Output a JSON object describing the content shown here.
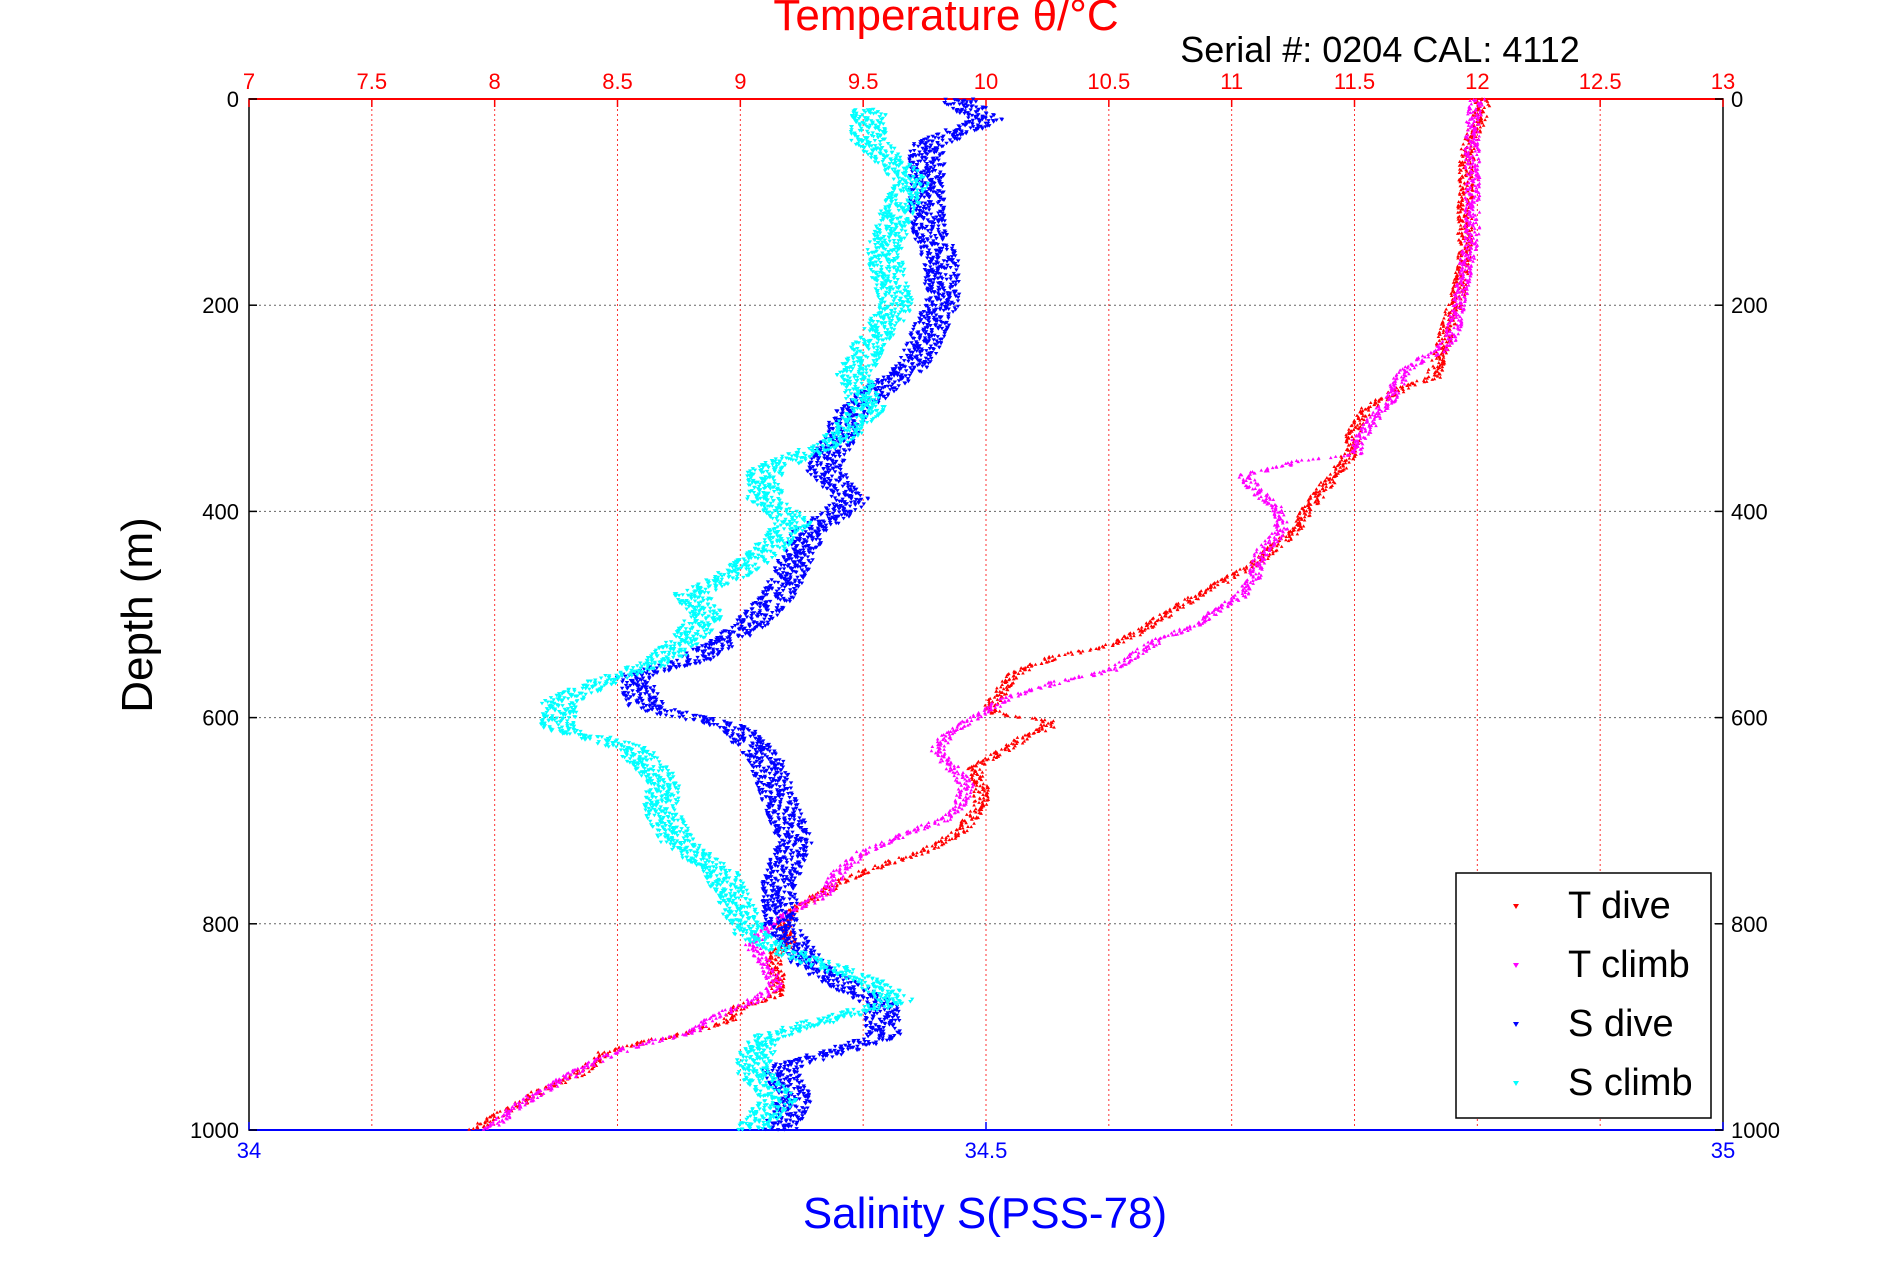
{
  "chart_data": {
    "type": "scatter",
    "title": "Temperature θ/°C",
    "annotation": "Serial #: 0204  CAL: 4112",
    "ylabel": "Depth (m)",
    "x2label": "Salinity S(PSS-78)",
    "xlim_temperature": [
      7,
      13
    ],
    "xlim_salinity": [
      34,
      35
    ],
    "ylim_depth": [
      0,
      1000
    ],
    "y_reversed": true,
    "temperature_ticks": [
      "7",
      "7.5",
      "8",
      "8.5",
      "9",
      "9.5",
      "10",
      "10.5",
      "11",
      "11.5",
      "12",
      "12.5",
      "13"
    ],
    "salinity_ticks": [
      "34",
      "34.5",
      "35"
    ],
    "depth_ticks": [
      "0",
      "200",
      "400",
      "600",
      "800",
      "1000"
    ],
    "grid": true,
    "legend_position": "bottom-right",
    "colors": {
      "temperature_axis": "#ff0000",
      "salinity_axis": "#0000ff",
      "t_dive": "#ff0000",
      "t_climb": "#ff00ff",
      "s_dive": "#0000ff",
      "s_climb": "#00ffff"
    },
    "series": [
      {
        "name": "T dive",
        "axis": "temperature",
        "points": [
          [
            12.02,
            0
          ],
          [
            12.02,
            10
          ],
          [
            11.96,
            50
          ],
          [
            11.95,
            100
          ],
          [
            11.95,
            150
          ],
          [
            11.92,
            190
          ],
          [
            11.88,
            220
          ],
          [
            11.85,
            250
          ],
          [
            11.82,
            270
          ],
          [
            11.7,
            280
          ],
          [
            11.55,
            300
          ],
          [
            11.5,
            320
          ],
          [
            11.48,
            345
          ],
          [
            11.4,
            370
          ],
          [
            11.3,
            400
          ],
          [
            11.25,
            420
          ],
          [
            11.1,
            450
          ],
          [
            10.95,
            470
          ],
          [
            10.8,
            490
          ],
          [
            10.7,
            505
          ],
          [
            10.6,
            520
          ],
          [
            10.5,
            530
          ],
          [
            10.3,
            540
          ],
          [
            10.2,
            548
          ],
          [
            10.1,
            560
          ],
          [
            10.05,
            580
          ],
          [
            10.0,
            590
          ],
          [
            10.05,
            596
          ],
          [
            10.25,
            603
          ],
          [
            10.25,
            610
          ],
          [
            10.15,
            620
          ],
          [
            10.05,
            635
          ],
          [
            9.95,
            650
          ],
          [
            9.98,
            665
          ],
          [
            9.98,
            685
          ],
          [
            9.9,
            710
          ],
          [
            9.75,
            730
          ],
          [
            9.55,
            745
          ],
          [
            9.4,
            760
          ],
          [
            9.3,
            775
          ],
          [
            9.2,
            790
          ],
          [
            9.17,
            800
          ],
          [
            9.2,
            808
          ],
          [
            9.2,
            820
          ],
          [
            9.13,
            830
          ],
          [
            9.15,
            850
          ],
          [
            9.15,
            870
          ],
          [
            9.0,
            880
          ],
          [
            8.95,
            895
          ],
          [
            8.8,
            905
          ],
          [
            8.6,
            915
          ],
          [
            8.45,
            925
          ],
          [
            8.35,
            945
          ],
          [
            8.2,
            960
          ],
          [
            8.1,
            975
          ],
          [
            7.98,
            990
          ],
          [
            7.92,
            1000
          ]
        ]
      },
      {
        "name": "T climb",
        "axis": "temperature",
        "points": [
          [
            12.0,
            0
          ],
          [
            11.98,
            30
          ],
          [
            11.98,
            80
          ],
          [
            11.98,
            130
          ],
          [
            11.95,
            170
          ],
          [
            11.92,
            200
          ],
          [
            11.9,
            230
          ],
          [
            11.85,
            245
          ],
          [
            11.75,
            255
          ],
          [
            11.7,
            265
          ],
          [
            11.65,
            290
          ],
          [
            11.58,
            310
          ],
          [
            11.52,
            330
          ],
          [
            11.5,
            345
          ],
          [
            11.3,
            350
          ],
          [
            11.05,
            365
          ],
          [
            11.1,
            380
          ],
          [
            11.2,
            400
          ],
          [
            11.2,
            420
          ],
          [
            11.12,
            440
          ],
          [
            11.1,
            460
          ],
          [
            11.05,
            480
          ],
          [
            10.95,
            495
          ],
          [
            10.85,
            510
          ],
          [
            10.7,
            525
          ],
          [
            10.6,
            540
          ],
          [
            10.5,
            555
          ],
          [
            10.3,
            565
          ],
          [
            10.1,
            580
          ],
          [
            9.95,
            600
          ],
          [
            9.85,
            615
          ],
          [
            9.8,
            630
          ],
          [
            9.85,
            645
          ],
          [
            9.92,
            665
          ],
          [
            9.9,
            685
          ],
          [
            9.82,
            700
          ],
          [
            9.7,
            710
          ],
          [
            9.5,
            730
          ],
          [
            9.4,
            750
          ],
          [
            9.35,
            770
          ],
          [
            9.2,
            790
          ],
          [
            9.1,
            805
          ],
          [
            9.05,
            820
          ],
          [
            9.1,
            840
          ],
          [
            9.15,
            860
          ],
          [
            9.05,
            875
          ],
          [
            8.9,
            890
          ],
          [
            8.8,
            905
          ],
          [
            8.55,
            920
          ],
          [
            8.4,
            935
          ],
          [
            8.25,
            955
          ],
          [
            8.1,
            975
          ],
          [
            8.0,
            995
          ],
          [
            7.95,
            1000
          ]
        ]
      },
      {
        "name": "S dive",
        "axis": "salinity",
        "points": [
          [
            34.48,
            0
          ],
          [
            34.5,
            20
          ],
          [
            34.46,
            45
          ],
          [
            34.46,
            80
          ],
          [
            34.46,
            120
          ],
          [
            34.47,
            160
          ],
          [
            34.47,
            200
          ],
          [
            34.46,
            230
          ],
          [
            34.45,
            260
          ],
          [
            34.43,
            280
          ],
          [
            34.41,
            300
          ],
          [
            34.4,
            330
          ],
          [
            34.39,
            360
          ],
          [
            34.41,
            390
          ],
          [
            34.38,
            420
          ],
          [
            34.37,
            450
          ],
          [
            34.36,
            480
          ],
          [
            34.34,
            510
          ],
          [
            34.3,
            545
          ],
          [
            34.26,
            560
          ],
          [
            34.27,
            590
          ],
          [
            34.33,
            610
          ],
          [
            34.35,
            640
          ],
          [
            34.36,
            680
          ],
          [
            34.37,
            720
          ],
          [
            34.36,
            760
          ],
          [
            34.36,
            800
          ],
          [
            34.38,
            840
          ],
          [
            34.43,
            880
          ],
          [
            34.43,
            910
          ],
          [
            34.36,
            940
          ],
          [
            34.37,
            970
          ],
          [
            34.36,
            1000
          ]
        ]
      },
      {
        "name": "S climb",
        "axis": "salinity",
        "points": [
          [
            34.42,
            10
          ],
          [
            34.42,
            40
          ],
          [
            34.45,
            80
          ],
          [
            34.44,
            110
          ],
          [
            34.43,
            150
          ],
          [
            34.44,
            200
          ],
          [
            34.42,
            240
          ],
          [
            34.41,
            270
          ],
          [
            34.42,
            300
          ],
          [
            34.4,
            330
          ],
          [
            34.35,
            360
          ],
          [
            34.35,
            390
          ],
          [
            34.37,
            410
          ],
          [
            34.35,
            440
          ],
          [
            34.33,
            460
          ],
          [
            34.3,
            480
          ],
          [
            34.31,
            500
          ],
          [
            34.3,
            520
          ],
          [
            34.28,
            545
          ],
          [
            34.24,
            565
          ],
          [
            34.21,
            585
          ],
          [
            34.21,
            610
          ],
          [
            34.26,
            630
          ],
          [
            34.28,
            660
          ],
          [
            34.28,
            690
          ],
          [
            34.29,
            720
          ],
          [
            34.32,
            750
          ],
          [
            34.33,
            780
          ],
          [
            34.34,
            810
          ],
          [
            34.37,
            830
          ],
          [
            34.42,
            855
          ],
          [
            34.44,
            875
          ],
          [
            34.4,
            890
          ],
          [
            34.35,
            910
          ],
          [
            34.34,
            940
          ],
          [
            34.36,
            970
          ],
          [
            34.34,
            1000
          ]
        ]
      }
    ]
  }
}
